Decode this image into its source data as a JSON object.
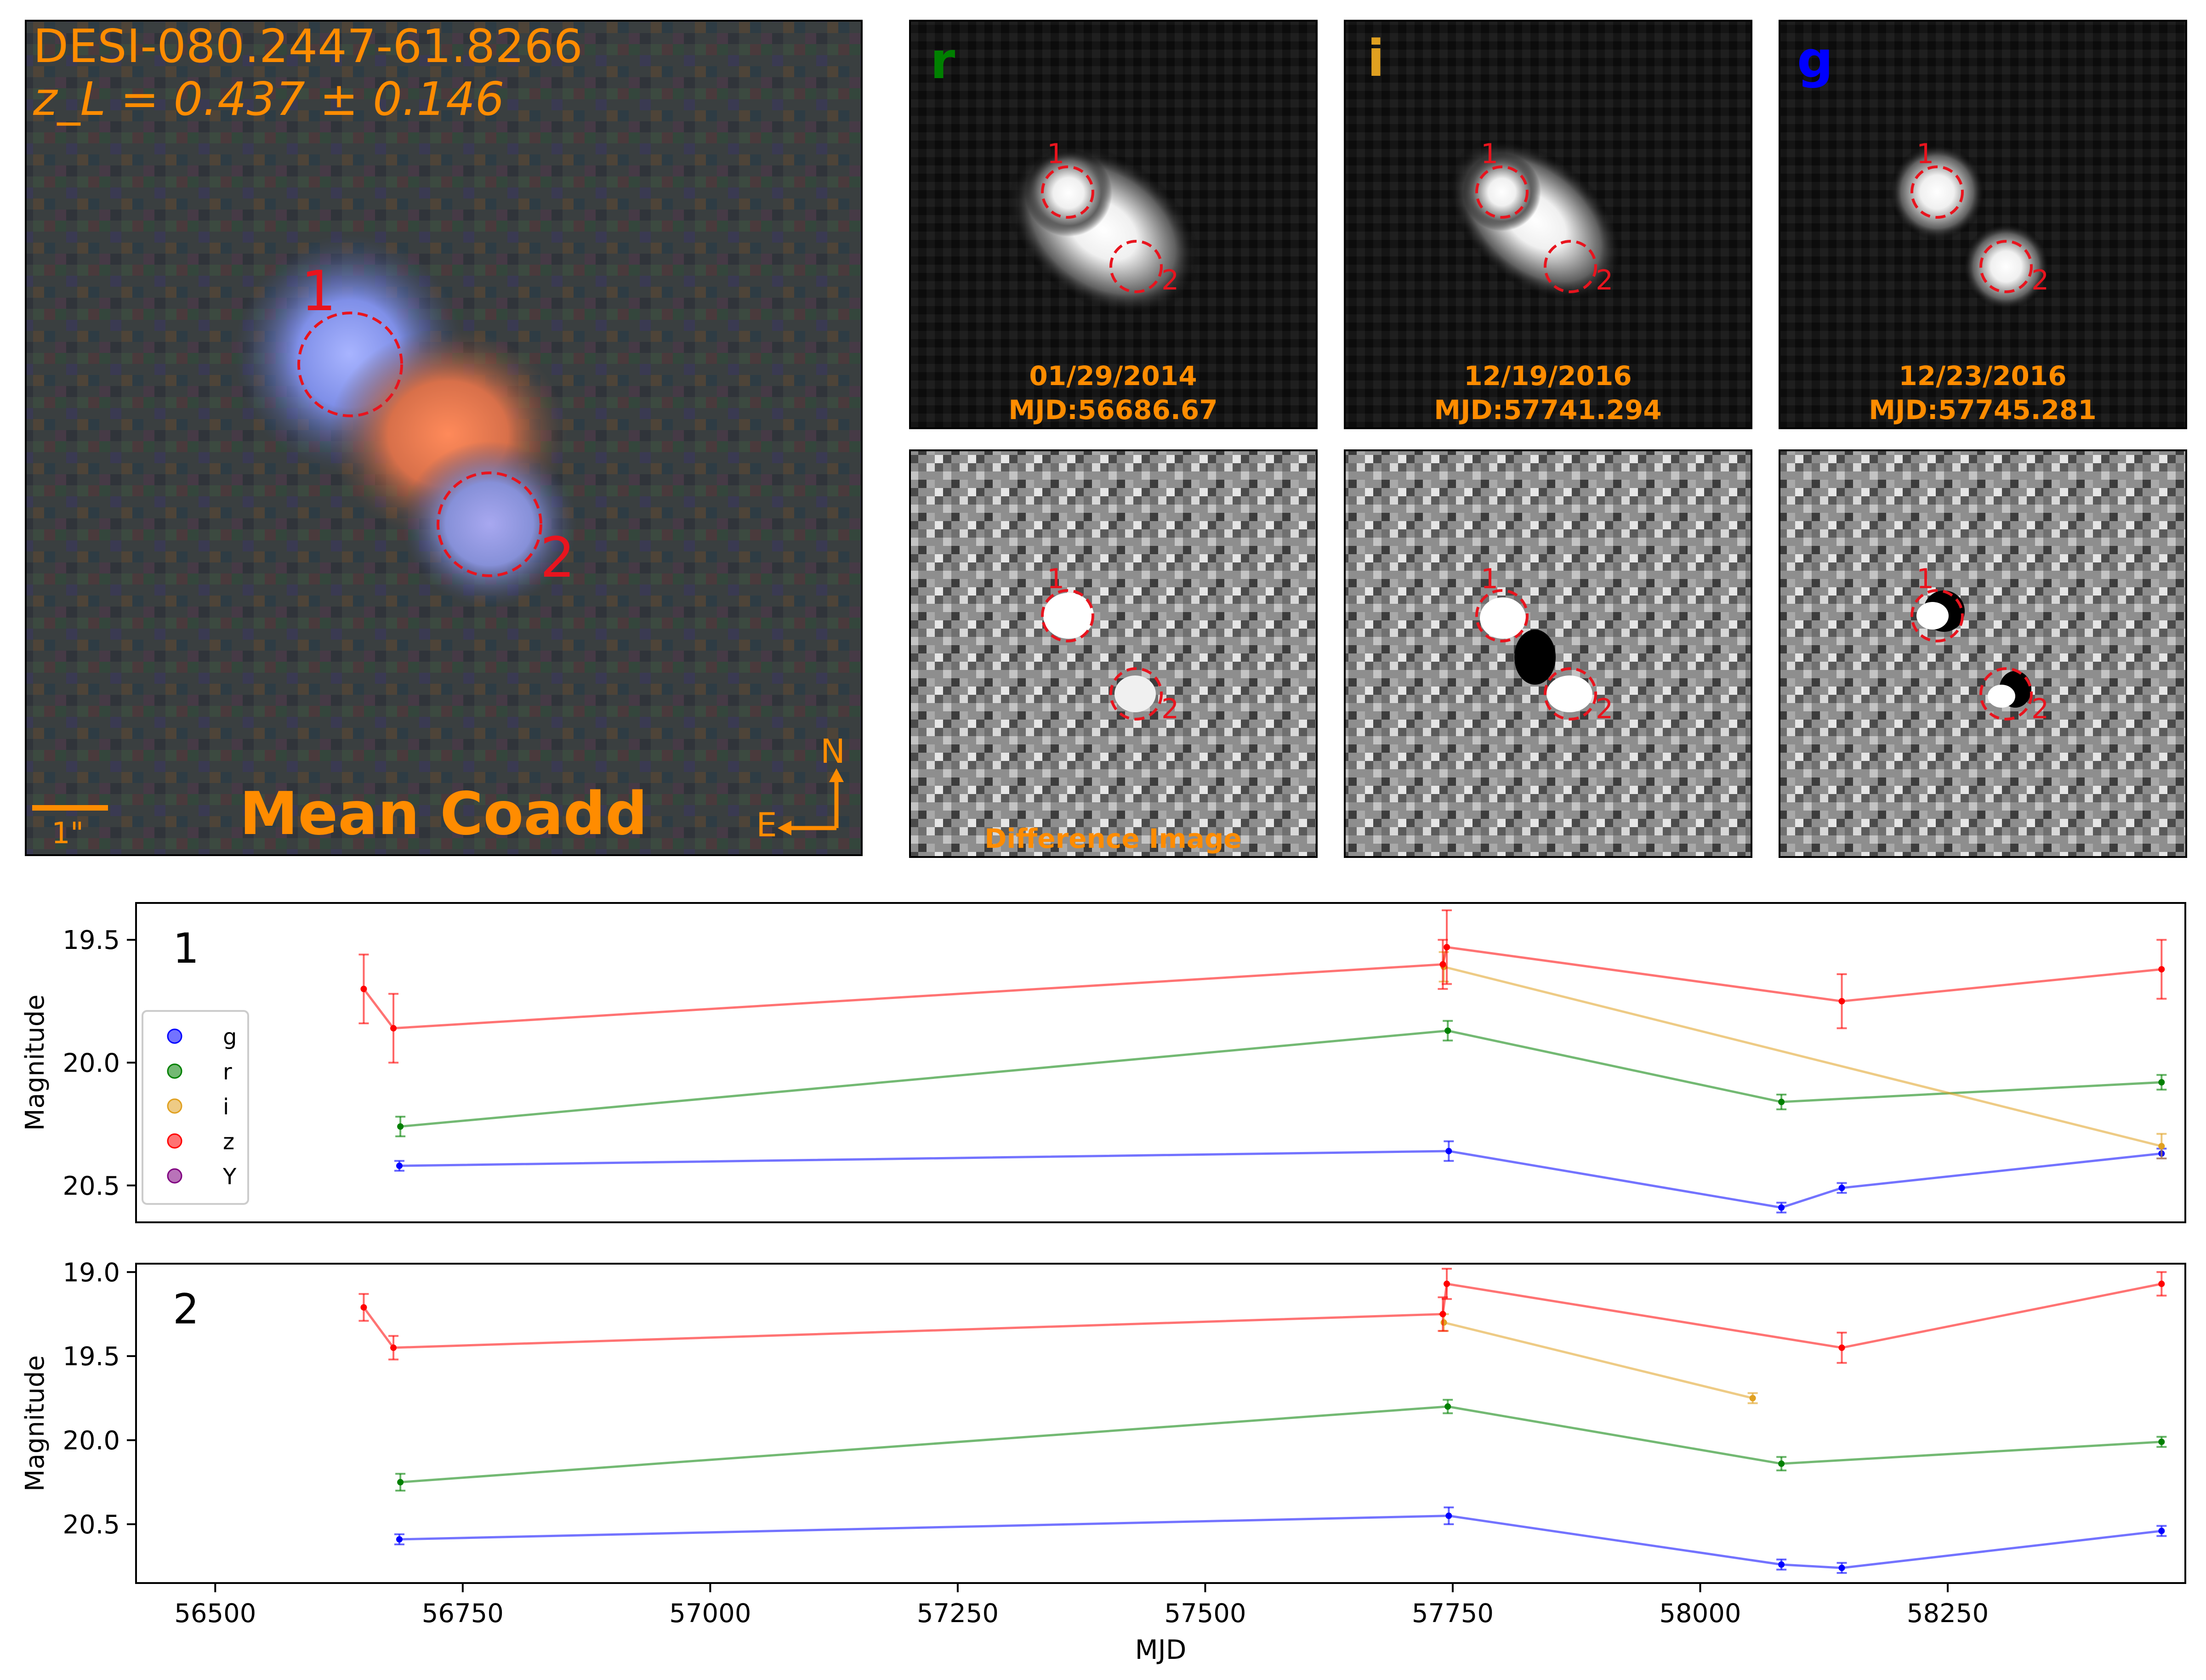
{
  "coadd": {
    "object_name": "DESI-080.2447-61.8266",
    "redshift": "z_L = 0.437 ± 0.146",
    "title": "Mean Coadd",
    "scale_label": "1\"",
    "north_label": "N",
    "east_label": "E",
    "marker_1": "1",
    "marker_2": "2"
  },
  "bands": [
    {
      "band": "r",
      "color": "#008000",
      "date": "01/29/2014",
      "mjd": "MJD:56686.67"
    },
    {
      "band": "i",
      "color": "#e0a020",
      "date": "12/19/2016",
      "mjd": "MJD:57741.294"
    },
    {
      "band": "g",
      "color": "#0000ff",
      "date": "12/23/2016",
      "mjd": "MJD:57745.281"
    }
  ],
  "difference_label": "Difference Image",
  "chart_data": {
    "type": "line",
    "xlabel": "MJD",
    "ylabel": "Magnitude",
    "xlim": [
      56420,
      58490
    ],
    "xticks": [
      56500,
      56750,
      57000,
      57250,
      57500,
      57750,
      58000,
      58250
    ],
    "legend": {
      "placement": "lower-left of panel 1",
      "entries": [
        {
          "label": "g",
          "color": "#0000ff"
        },
        {
          "label": "r",
          "color": "#008000"
        },
        {
          "label": "i",
          "color": "#e0a020"
        },
        {
          "label": "z",
          "color": "#ff0000"
        },
        {
          "label": "Y",
          "color": "#800080"
        }
      ]
    },
    "panels": [
      {
        "label": "1",
        "ylim": [
          20.65,
          19.35
        ],
        "yticks": [
          19.5,
          20.0,
          20.5
        ],
        "series": [
          {
            "name": "g",
            "color": "#0000ff",
            "x": [
              56686,
              57746,
              58082,
              58143,
              58466
            ],
            "y": [
              20.42,
              20.36,
              20.59,
              20.51,
              20.37
            ],
            "err": [
              0.02,
              0.04,
              0.02,
              0.02,
              0.02
            ]
          },
          {
            "name": "r",
            "color": "#008000",
            "x": [
              56687,
              57745,
              58082,
              58466
            ],
            "y": [
              20.26,
              19.87,
              20.16,
              20.08
            ],
            "err": [
              0.04,
              0.04,
              0.03,
              0.03
            ]
          },
          {
            "name": "i",
            "color": "#e0a020",
            "x": [
              57741,
              58466
            ],
            "y": [
              19.61,
              20.34
            ],
            "err": [
              0.06,
              0.05
            ]
          },
          {
            "name": "z",
            "color": "#ff0000",
            "x": [
              56650,
              56680,
              57740,
              57744,
              58143,
              58466
            ],
            "y": [
              19.7,
              19.86,
              19.6,
              19.53,
              19.75,
              19.62
            ],
            "err": [
              0.14,
              0.14,
              0.1,
              0.15,
              0.11,
              0.12
            ]
          }
        ]
      },
      {
        "label": "2",
        "ylim": [
          20.85,
          18.95
        ],
        "yticks": [
          19.0,
          19.5,
          20.0,
          20.5
        ],
        "series": [
          {
            "name": "g",
            "color": "#0000ff",
            "x": [
              56686,
              57746,
              58082,
              58143,
              58466
            ],
            "y": [
              20.59,
              20.45,
              20.74,
              20.76,
              20.54
            ],
            "err": [
              0.03,
              0.05,
              0.03,
              0.03,
              0.03
            ]
          },
          {
            "name": "r",
            "color": "#008000",
            "x": [
              56687,
              57745,
              58082,
              58466
            ],
            "y": [
              20.25,
              19.8,
              20.14,
              20.01
            ],
            "err": [
              0.05,
              0.04,
              0.04,
              0.03
            ]
          },
          {
            "name": "i",
            "color": "#e0a020",
            "x": [
              57741,
              58053
            ],
            "y": [
              19.3,
              19.75
            ],
            "err": [
              0.05,
              0.03
            ]
          },
          {
            "name": "z",
            "color": "#ff0000",
            "x": [
              56650,
              56680,
              57740,
              57744,
              58143,
              58466
            ],
            "y": [
              19.21,
              19.45,
              19.25,
              19.07,
              19.45,
              19.07
            ],
            "err": [
              0.08,
              0.07,
              0.1,
              0.09,
              0.09,
              0.07
            ]
          }
        ]
      }
    ]
  }
}
